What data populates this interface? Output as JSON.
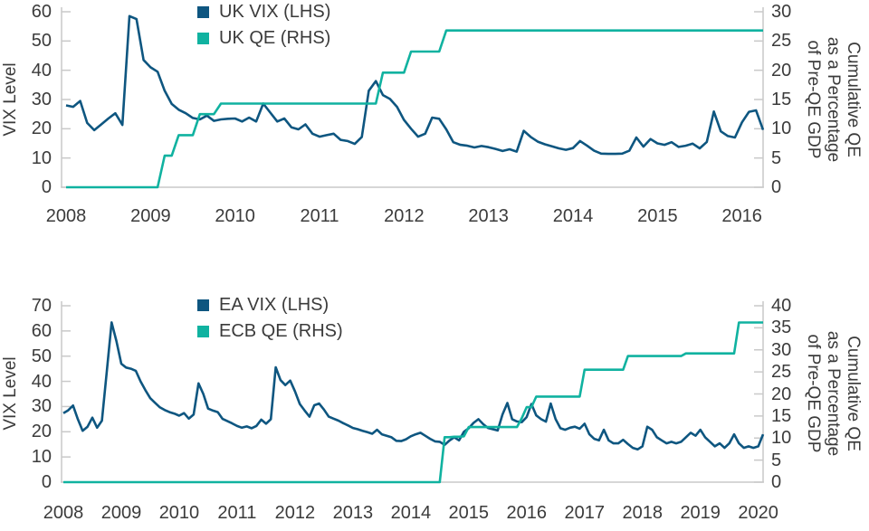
{
  "figure": {
    "background": "#ffffff",
    "text_color": "#3b3b3b",
    "axis_color": "#c9c9c9",
    "vix_color": "#0e5680",
    "qe_color": "#10b2a0"
  },
  "chart_data": [
    {
      "type": "line",
      "title": "",
      "x_start": "2008-01",
      "x_frequency": "monthly",
      "x_tick_labels": [
        "2008",
        "2009",
        "2010",
        "2011",
        "2012",
        "2013",
        "2014",
        "2015",
        "2016"
      ],
      "left_axis": {
        "title": "VIX Level",
        "range": [
          0,
          60
        ],
        "ticks": [
          0,
          10,
          20,
          30,
          40,
          50,
          60
        ]
      },
      "right_axis": {
        "title": "Cumulative QE\nas a Percentage\nof Pre-QE GDP",
        "range": [
          0,
          30
        ],
        "ticks": [
          0,
          5,
          10,
          15,
          20,
          25,
          30
        ]
      },
      "legend_position": "top-center",
      "grid": "ticks-only",
      "series": [
        {
          "name": "UK VIX (LHS)",
          "axis": "left",
          "color": "#0e5680",
          "values": [
            28.0,
            27.5,
            29.5,
            22.0,
            19.5,
            21.5,
            23.5,
            25.3,
            21.3,
            58.5,
            57.5,
            43.5,
            41.0,
            39.5,
            33.0,
            28.5,
            26.5,
            25.3,
            23.7,
            23.2,
            24.5,
            22.7,
            23.2,
            23.4,
            23.5,
            22.5,
            23.8,
            22.5,
            28.6,
            25.5,
            22.5,
            23.5,
            20.5,
            19.8,
            21.5,
            18.3,
            17.3,
            17.8,
            18.3,
            16.2,
            15.8,
            14.8,
            17.2,
            33.0,
            36.3,
            31.5,
            30.2,
            27.5,
            23.0,
            20.0,
            17.3,
            18.3,
            23.8,
            23.4,
            19.8,
            15.4,
            14.5,
            14.2,
            13.6,
            14.1,
            13.7,
            13.1,
            12.4,
            13.0,
            12.2,
            19.3,
            17.2,
            15.6,
            14.7,
            14.0,
            13.3,
            12.8,
            13.4,
            15.8,
            14.2,
            12.5,
            11.5,
            11.4,
            11.4,
            11.5,
            12.5,
            17.0,
            13.9,
            16.5,
            15.0,
            14.5,
            15.4,
            13.8,
            14.2,
            14.9,
            13.3,
            15.5,
            25.9,
            19.1,
            17.5,
            17.0,
            22.2,
            25.8,
            26.3,
            19.6
          ]
        },
        {
          "name": "UK QE (RHS)",
          "axis": "right",
          "color": "#10b2a0",
          "values": [
            0,
            0,
            0,
            0,
            0,
            0,
            0,
            0,
            0,
            0,
            0,
            0,
            0,
            0,
            5.4,
            5.4,
            8.9,
            8.9,
            8.9,
            12.5,
            12.5,
            12.5,
            14.3,
            14.3,
            14.3,
            14.3,
            14.3,
            14.3,
            14.3,
            14.3,
            14.3,
            14.3,
            14.3,
            14.3,
            14.3,
            14.3,
            14.3,
            14.3,
            14.3,
            14.3,
            14.3,
            14.3,
            14.3,
            14.3,
            14.3,
            19.6,
            19.6,
            19.6,
            19.6,
            23.2,
            23.2,
            23.2,
            23.2,
            23.2,
            26.8,
            26.8,
            26.8,
            26.8,
            26.8,
            26.8,
            26.8,
            26.8,
            26.8,
            26.8,
            26.8,
            26.8,
            26.8,
            26.8,
            26.8,
            26.8,
            26.8,
            26.8,
            26.8,
            26.8,
            26.8,
            26.8,
            26.8,
            26.8,
            26.8,
            26.8,
            26.8,
            26.8,
            26.8,
            26.8,
            26.8,
            26.8,
            26.8,
            26.8,
            26.8,
            26.8,
            26.8,
            26.8,
            26.8,
            26.8,
            26.8,
            26.8,
            26.8,
            26.8,
            26.8,
            26.8
          ]
        }
      ]
    },
    {
      "type": "line",
      "title": "",
      "x_start": "2008-01",
      "x_frequency": "monthly",
      "x_tick_labels": [
        "2008",
        "2009",
        "2010",
        "2011",
        "2012",
        "2013",
        "2014",
        "2015",
        "2016",
        "2017",
        "2018",
        "2019",
        "2020"
      ],
      "left_axis": {
        "title": "VIX Level",
        "range": [
          0,
          70
        ],
        "ticks": [
          0,
          10,
          20,
          30,
          40,
          50,
          60,
          70
        ]
      },
      "right_axis": {
        "title": "Cumulative QE\nas a Percentage\nof Pre-QE GDP",
        "range": [
          0,
          40
        ],
        "ticks": [
          0,
          5,
          10,
          15,
          20,
          25,
          30,
          35,
          40
        ]
      },
      "legend_position": "top-center",
      "grid": "ticks-only",
      "series": [
        {
          "name": "EA VIX (LHS)",
          "axis": "left",
          "color": "#0e5680",
          "values": [
            27.4,
            28.5,
            30.4,
            25.0,
            20.4,
            22.0,
            25.6,
            21.6,
            24.4,
            44.0,
            63.4,
            56.0,
            47.0,
            45.5,
            45.0,
            44.2,
            40.0,
            36.5,
            33.3,
            31.5,
            29.7,
            28.6,
            27.8,
            27.2,
            26.4,
            27.4,
            25.2,
            26.8,
            39.2,
            35.0,
            29.2,
            28.4,
            27.8,
            25.1,
            24.2,
            23.3,
            22.3,
            21.6,
            22.1,
            21.4,
            22.3,
            24.8,
            23.2,
            25.0,
            45.6,
            40.5,
            38.5,
            40.3,
            36.0,
            31.0,
            28.4,
            26.0,
            30.5,
            31.2,
            28.8,
            26.0,
            25.2,
            24.4,
            23.4,
            22.5,
            21.5,
            21.0,
            20.4,
            19.8,
            19.2,
            20.8,
            19.0,
            18.4,
            17.8,
            16.4,
            16.3,
            17.0,
            18.2,
            19.0,
            19.6,
            18.4,
            17.2,
            16.2,
            16.0,
            14.8,
            16.5,
            17.8,
            16.6,
            20.0,
            21.4,
            23.5,
            25.0,
            23.0,
            21.5,
            21.0,
            20.5,
            26.8,
            31.4,
            25.0,
            24.1,
            23.8,
            25.8,
            31.0,
            26.5,
            25.0,
            24.0,
            31.2,
            25.0,
            21.4,
            20.8,
            21.6,
            22.0,
            21.2,
            23.2,
            19.0,
            17.2,
            16.6,
            20.8,
            16.6,
            15.4,
            15.4,
            16.8,
            15.1,
            13.6,
            13.0,
            14.2,
            22.0,
            20.8,
            17.8,
            16.6,
            15.4,
            16.0,
            15.4,
            16.0,
            17.8,
            19.6,
            18.4,
            20.8,
            17.8,
            16.0,
            14.2,
            15.4,
            13.6,
            15.4,
            19.0,
            15.4,
            13.6,
            14.2,
            13.6,
            14.2,
            19.0
          ]
        },
        {
          "name": "ECB QE (RHS)",
          "axis": "right",
          "color": "#10b2a0",
          "values": [
            0,
            0,
            0,
            0,
            0,
            0,
            0,
            0,
            0,
            0,
            0,
            0,
            0,
            0,
            0,
            0,
            0,
            0,
            0,
            0,
            0,
            0,
            0,
            0,
            0,
            0,
            0,
            0,
            0,
            0,
            0,
            0,
            0,
            0,
            0,
            0,
            0,
            0,
            0,
            0,
            0,
            0,
            0,
            0,
            0,
            0,
            0,
            0,
            0,
            0,
            0,
            0,
            0,
            0,
            0,
            0,
            0,
            0,
            0,
            0,
            0,
            0,
            0,
            0,
            0,
            0,
            0,
            0,
            0,
            0,
            0,
            0,
            0,
            0,
            0,
            0,
            0,
            0,
            0,
            10.2,
            10.2,
            10.3,
            10.3,
            10.4,
            12.5,
            12.5,
            12.5,
            12.5,
            12.5,
            12.5,
            12.5,
            12.5,
            12.5,
            12.5,
            12.5,
            14.5,
            17.0,
            17.0,
            19.4,
            19.4,
            19.4,
            19.4,
            19.4,
            19.4,
            19.4,
            19.4,
            19.4,
            19.4,
            25.5,
            25.5,
            25.5,
            25.5,
            25.5,
            25.5,
            25.5,
            25.5,
            25.5,
            28.6,
            28.6,
            28.6,
            28.6,
            28.6,
            28.6,
            28.6,
            28.6,
            28.6,
            28.6,
            28.6,
            28.6,
            29.2,
            29.2,
            29.2,
            29.2,
            29.2,
            29.2,
            29.2,
            29.2,
            29.2,
            29.2,
            29.2,
            36.2,
            36.2,
            36.2,
            36.2,
            36.2,
            36.2
          ]
        }
      ]
    }
  ]
}
